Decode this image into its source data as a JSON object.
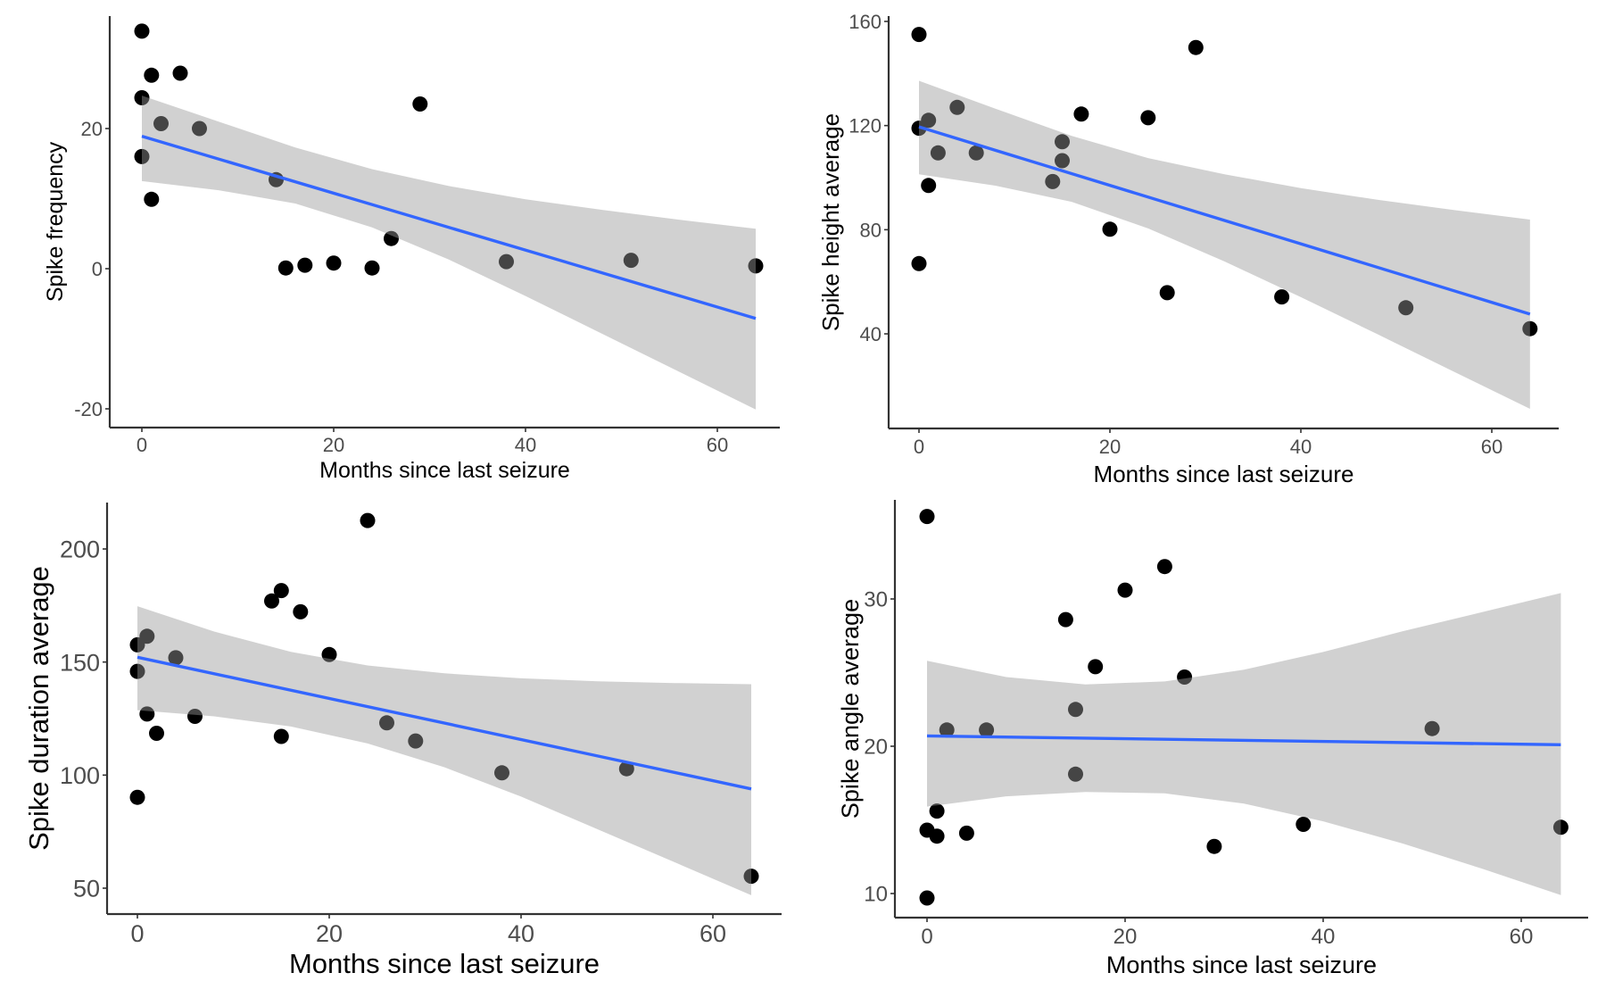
{
  "style": {
    "point_color": "#000000",
    "line_color": "#3366FF",
    "band_color": "#999999",
    "band_opacity": 0.45,
    "axis_color": "#333333",
    "tick_label_color": "#4D4D4D"
  },
  "chart_data": [
    {
      "id": "spike-frequency",
      "type": "scatter",
      "title": "",
      "xlabel": "Months since last seizure",
      "ylabel": "Spike frequency",
      "xlim": [
        -3.5,
        67.5
      ],
      "ylim": [
        -22,
        37
      ],
      "xticks": [
        0,
        20,
        40,
        60
      ],
      "yticks": [
        -20,
        0,
        20
      ],
      "xtick_labels": [
        "0",
        "20",
        "40",
        "60"
      ],
      "ytick_labels": [
        "-20",
        "0",
        "20"
      ],
      "grid": false,
      "points": [
        {
          "x": 0,
          "y": 33.9
        },
        {
          "x": 1,
          "y": 27.6
        },
        {
          "x": 4,
          "y": 27.9
        },
        {
          "x": 0,
          "y": 24.4
        },
        {
          "x": 2,
          "y": 20.7
        },
        {
          "x": 6,
          "y": 20.0
        },
        {
          "x": 0,
          "y": 16.0
        },
        {
          "x": 1,
          "y": 9.9
        },
        {
          "x": 14,
          "y": 12.7
        },
        {
          "x": 29,
          "y": 23.5
        },
        {
          "x": 15,
          "y": 0.1
        },
        {
          "x": 17,
          "y": 0.5
        },
        {
          "x": 20,
          "y": 0.8
        },
        {
          "x": 24,
          "y": 0.1
        },
        {
          "x": 26,
          "y": 4.3
        },
        {
          "x": 38,
          "y": 1.0
        },
        {
          "x": 51,
          "y": 1.2
        },
        {
          "x": 64,
          "y": 0.4
        }
      ],
      "fit": {
        "method": "linear",
        "x": [
          0,
          64
        ],
        "y": [
          18.9,
          -7.1
        ]
      },
      "confidence_band": {
        "x": [
          0,
          8,
          16,
          24,
          32,
          40,
          48,
          56,
          64
        ],
        "upper": [
          24.7,
          21.0,
          17.3,
          14.2,
          11.8,
          9.9,
          8.4,
          7.0,
          5.7
        ],
        "lower": [
          12.5,
          11.2,
          9.3,
          5.9,
          1.3,
          -3.9,
          -9.3,
          -14.7,
          -20.1
        ]
      }
    },
    {
      "id": "spike-height",
      "type": "scatter",
      "title": "",
      "xlabel": "Months since last seizure",
      "ylabel": "Spike height average",
      "xlim": [
        -3.5,
        67.5
      ],
      "ylim": [
        2,
        161
      ],
      "xticks": [
        0,
        20,
        40,
        60
      ],
      "yticks": [
        40,
        80,
        120,
        160
      ],
      "xtick_labels": [
        "0",
        "20",
        "40",
        "60"
      ],
      "ytick_labels": [
        "40",
        "80",
        "120",
        "160"
      ],
      "grid": false,
      "points": [
        {
          "x": 0,
          "y": 155
        },
        {
          "x": 0,
          "y": 119
        },
        {
          "x": 1,
          "y": 122
        },
        {
          "x": 4,
          "y": 127
        },
        {
          "x": 2,
          "y": 109.5
        },
        {
          "x": 6,
          "y": 109.5
        },
        {
          "x": 1,
          "y": 97
        },
        {
          "x": 0,
          "y": 67
        },
        {
          "x": 14,
          "y": 98.5
        },
        {
          "x": 15,
          "y": 113.8
        },
        {
          "x": 15,
          "y": 106.5
        },
        {
          "x": 17,
          "y": 124.4
        },
        {
          "x": 20,
          "y": 80.2
        },
        {
          "x": 24,
          "y": 123
        },
        {
          "x": 26,
          "y": 55.8
        },
        {
          "x": 29,
          "y": 150
        },
        {
          "x": 38,
          "y": 54.2
        },
        {
          "x": 51,
          "y": 50
        },
        {
          "x": 64,
          "y": 42
        }
      ],
      "fit": {
        "method": "linear",
        "x": [
          0,
          64
        ],
        "y": [
          119.5,
          47.6
        ]
      },
      "confidence_band": {
        "x": [
          0,
          8,
          16,
          24,
          32,
          40,
          48,
          56,
          64
        ],
        "upper": [
          137.2,
          126.5,
          116.0,
          107.5,
          101.3,
          96.0,
          91.5,
          87.6,
          83.9
        ],
        "lower": [
          101.3,
          96.9,
          90.7,
          80.5,
          67.8,
          54.1,
          39.9,
          25.5,
          11.2
        ]
      }
    },
    {
      "id": "spike-duration",
      "type": "scatter",
      "title": "",
      "xlabel": "Months since last seizure",
      "ylabel": "Spike duration average",
      "xlim": [
        -3.5,
        67.5
      ],
      "ylim": [
        38,
        220
      ],
      "xticks": [
        0,
        20,
        40,
        60
      ],
      "yticks": [
        50,
        100,
        150,
        200
      ],
      "xtick_labels": [
        "0",
        "20",
        "40",
        "60"
      ],
      "ytick_labels": [
        "50",
        "100",
        "150",
        "200"
      ],
      "grid": false,
      "points": [
        {
          "x": 24,
          "y": 212.6
        },
        {
          "x": 14,
          "y": 177
        },
        {
          "x": 15,
          "y": 181.6
        },
        {
          "x": 17,
          "y": 172.2
        },
        {
          "x": 20,
          "y": 153.3
        },
        {
          "x": 0,
          "y": 157.6
        },
        {
          "x": 1,
          "y": 161.4
        },
        {
          "x": 0,
          "y": 145.9
        },
        {
          "x": 4,
          "y": 151.9
        },
        {
          "x": 1,
          "y": 127
        },
        {
          "x": 6,
          "y": 126
        },
        {
          "x": 2,
          "y": 118.5
        },
        {
          "x": 15,
          "y": 117.1
        },
        {
          "x": 0,
          "y": 90.2
        },
        {
          "x": 26,
          "y": 123.1
        },
        {
          "x": 29,
          "y": 115.1
        },
        {
          "x": 38,
          "y": 101
        },
        {
          "x": 51,
          "y": 102.8
        },
        {
          "x": 64,
          "y": 55.3
        }
      ],
      "fit": {
        "method": "linear",
        "x": [
          0,
          64
        ],
        "y": [
          152.1,
          93.9
        ]
      },
      "confidence_band": {
        "x": [
          0,
          8,
          16,
          24,
          32,
          40,
          48,
          56,
          64
        ],
        "upper": [
          174.7,
          163.5,
          154.5,
          148.5,
          145.0,
          142.8,
          141.5,
          140.7,
          140.2
        ],
        "lower": [
          128.7,
          126.0,
          121.5,
          114.0,
          103.5,
          90.5,
          76.0,
          61.5,
          46.9
        ]
      }
    },
    {
      "id": "spike-angle",
      "type": "scatter",
      "title": "",
      "xlabel": "Months since last seizure",
      "ylabel": "Spike angle average",
      "xlim": [
        -3.5,
        67.5
      ],
      "ylim": [
        8.5,
        36.5
      ],
      "xticks": [
        0,
        20,
        40,
        60
      ],
      "yticks": [
        10,
        20,
        30
      ],
      "xtick_labels": [
        "0",
        "20",
        "40",
        "60"
      ],
      "ytick_labels": [
        "10",
        "20",
        "30"
      ],
      "grid": false,
      "points": [
        {
          "x": 0,
          "y": 35.6
        },
        {
          "x": 24,
          "y": 32.2
        },
        {
          "x": 20,
          "y": 30.6
        },
        {
          "x": 14,
          "y": 28.6
        },
        {
          "x": 17,
          "y": 25.4
        },
        {
          "x": 26,
          "y": 24.7
        },
        {
          "x": 15,
          "y": 22.5
        },
        {
          "x": 2,
          "y": 21.1
        },
        {
          "x": 6,
          "y": 21.1
        },
        {
          "x": 51,
          "y": 21.2
        },
        {
          "x": 15,
          "y": 18.1
        },
        {
          "x": 1,
          "y": 15.6
        },
        {
          "x": 0,
          "y": 14.3
        },
        {
          "x": 1,
          "y": 13.9
        },
        {
          "x": 4,
          "y": 14.1
        },
        {
          "x": 38,
          "y": 14.7
        },
        {
          "x": 64,
          "y": 14.5
        },
        {
          "x": 29,
          "y": 13.2
        },
        {
          "x": 0,
          "y": 9.7
        }
      ],
      "fit": {
        "method": "linear",
        "x": [
          0,
          64
        ],
        "y": [
          20.7,
          20.1
        ]
      },
      "confidence_band": {
        "x": [
          0,
          8,
          16,
          24,
          32,
          40,
          48,
          56,
          64
        ],
        "upper": [
          25.8,
          24.7,
          24.2,
          24.4,
          25.2,
          26.4,
          27.8,
          29.1,
          30.4
        ],
        "lower": [
          15.9,
          16.6,
          16.9,
          16.8,
          16.1,
          14.9,
          13.4,
          11.7,
          9.9
        ]
      }
    }
  ]
}
